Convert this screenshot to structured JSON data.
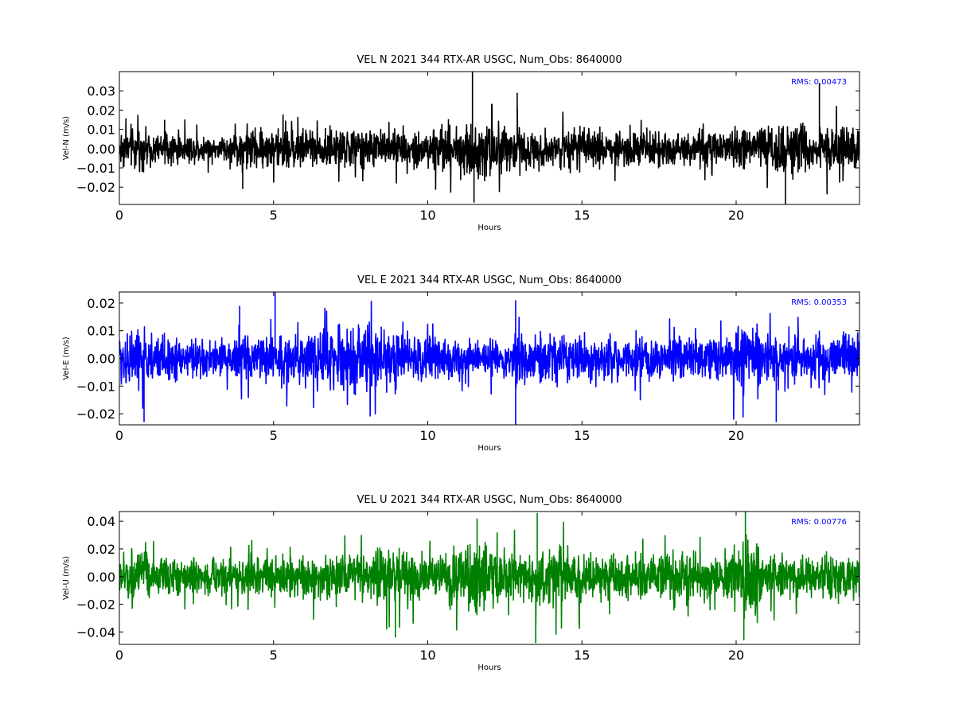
{
  "chart_data": [
    {
      "type": "line",
      "title": "VEL N 2021 344 RTX-AR  USGC, Num_Obs: 8640000",
      "xlabel": "Hours",
      "ylabel": "Vel-N (m/s)",
      "xlim": [
        0,
        24
      ],
      "ylim": [
        -0.029,
        0.04
      ],
      "xticks": [
        0,
        5,
        10,
        15,
        20
      ],
      "yticks": [
        -0.02,
        -0.01,
        0.0,
        0.01,
        0.02,
        0.03
      ],
      "ytick_labels": [
        "−0.02",
        "−0.01",
        "0.00",
        "0.01",
        "0.02",
        "0.03"
      ],
      "annotation": "RMS:  0.00473",
      "annotation_color": "#0000ff",
      "series": [
        {
          "color": "#000000",
          "description": "velocity residual noise, dense trace",
          "envelope_hours": [
            0,
            0.3,
            1,
            3.6,
            4,
            5,
            7,
            9,
            10.5,
            11.5,
            12.5,
            15,
            19,
            21,
            22,
            24
          ],
          "envelope_amplitude": [
            0.016,
            0.015,
            0.012,
            0.009,
            0.017,
            0.013,
            0.015,
            0.013,
            0.016,
            0.025,
            0.016,
            0.014,
            0.012,
            0.017,
            0.02,
            0.014
          ],
          "spikes": [
            [
              11.45,
              0.04
            ],
            [
              11.5,
              -0.028
            ],
            [
              22.7,
              0.034
            ],
            [
              21.6,
              -0.029
            ],
            [
              4.0,
              -0.021
            ],
            [
              12.9,
              0.029
            ]
          ]
        }
      ],
      "grid": false
    },
    {
      "type": "line",
      "title": "VEL E 2021 344 RTX-AR  USGC, Num_Obs: 8640000",
      "xlabel": "Hours",
      "ylabel": "Vel-E (m/s)",
      "xlim": [
        0,
        24
      ],
      "ylim": [
        -0.024,
        0.024
      ],
      "xticks": [
        0,
        5,
        10,
        15,
        20
      ],
      "yticks": [
        -0.02,
        -0.01,
        0.0,
        0.01,
        0.02
      ],
      "ytick_labels": [
        "−0.02",
        "−0.01",
        "0.00",
        "0.01",
        "0.02"
      ],
      "annotation": "RMS:  0.00353",
      "annotation_color": "#0000ff",
      "series": [
        {
          "color": "#0000ff",
          "description": "velocity residual noise, dense trace",
          "envelope_hours": [
            0,
            0.3,
            1,
            3.5,
            4,
            7,
            9,
            10,
            12.5,
            13,
            19.5,
            20,
            21,
            24
          ],
          "envelope_amplitude": [
            0.015,
            0.016,
            0.012,
            0.009,
            0.011,
            0.016,
            0.016,
            0.011,
            0.009,
            0.013,
            0.01,
            0.017,
            0.013,
            0.014
          ],
          "spikes": [
            [
              5.05,
              0.024
            ],
            [
              12.85,
              -0.024
            ],
            [
              0.8,
              -0.023
            ],
            [
              3.9,
              0.019
            ],
            [
              21.3,
              -0.023
            ],
            [
              12.85,
              0.021
            ]
          ]
        }
      ],
      "grid": false
    },
    {
      "type": "line",
      "title": "VEL U 2021 344 RTX-AR  USGC, Num_Obs: 8640000",
      "xlabel": "Hours",
      "ylabel": "Vel-U (m/s)",
      "xlim": [
        0,
        24
      ],
      "ylim": [
        -0.049,
        0.047
      ],
      "xticks": [
        0,
        5,
        10,
        15,
        20
      ],
      "yticks": [
        -0.04,
        -0.02,
        0.0,
        0.02,
        0.04
      ],
      "ytick_labels": [
        "−0.04",
        "−0.02",
        "0.00",
        "0.02",
        "0.04"
      ],
      "annotation": "RMS:  0.00776",
      "annotation_color": "#0000ff",
      "series": [
        {
          "color": "#008000",
          "description": "velocity residual noise, dense trace",
          "envelope_hours": [
            0,
            0.3,
            1,
            3,
            5,
            7.5,
            8.5,
            10,
            11.5,
            12,
            13,
            14,
            16,
            18,
            19.5,
            20.3,
            21,
            22,
            24
          ],
          "envelope_amplitude": [
            0.024,
            0.028,
            0.02,
            0.019,
            0.02,
            0.024,
            0.03,
            0.022,
            0.038,
            0.032,
            0.023,
            0.032,
            0.021,
            0.027,
            0.018,
            0.042,
            0.03,
            0.024,
            0.024
          ],
          "spikes": [
            [
              13.55,
              0.046
            ],
            [
              13.5,
              -0.048
            ],
            [
              20.3,
              0.047
            ],
            [
              20.25,
              -0.046
            ],
            [
              8.95,
              -0.044
            ],
            [
              11.6,
              0.042
            ]
          ]
        }
      ],
      "grid": false
    }
  ]
}
